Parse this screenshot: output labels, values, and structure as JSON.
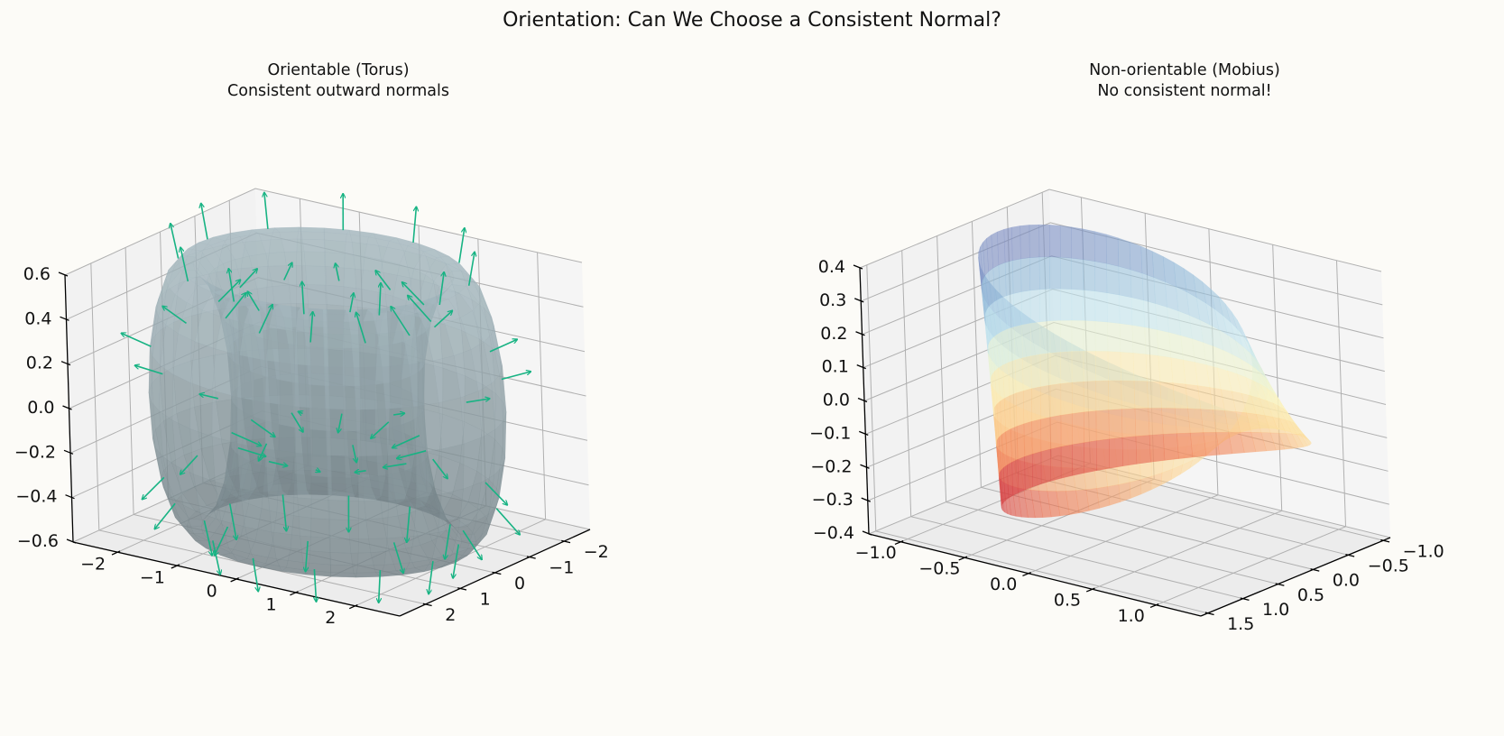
{
  "suptitle": "Orientation: Can We Choose a Consistent Normal?",
  "colors": {
    "background": "#fcfbf7",
    "pane": "#f2f2f2",
    "grid": "#b0b0b0",
    "torus": "#a3b7be",
    "normals": "#17b383",
    "mobius_cmap": [
      "#c51b3a",
      "#f0764d",
      "#fdd08a",
      "#fbf8c5",
      "#c4e6ef",
      "#8ab4d6",
      "#6f73b5"
    ]
  },
  "chart_data": [
    {
      "type": "surface3d",
      "surface": "torus",
      "title_line1": "Orientable (Torus)",
      "title_line2": "Consistent outward normals",
      "x_ticks": [
        "−2",
        "−1",
        "0",
        "1",
        "2"
      ],
      "y_ticks": [
        "−2",
        "−1",
        "0",
        "1",
        "2"
      ],
      "z_ticks": [
        "−0.6",
        "−0.4",
        "−0.2",
        "0.0",
        "0.2",
        "0.4",
        "0.6"
      ],
      "xlim": [
        -2.5,
        2.5
      ],
      "ylim": [
        -2.5,
        2.5
      ],
      "zlim": [
        -0.6,
        0.6
      ],
      "R": 2,
      "r": 0.6,
      "normals": "outward quiver arrows on the torus surface",
      "grid": true
    },
    {
      "type": "surface3d",
      "surface": "mobius",
      "title_line1": "Non-orientable (Mobius)",
      "title_line2": "No consistent normal!",
      "x_ticks": [
        "−1.0",
        "−0.5",
        "0.0",
        "0.5",
        "1.0"
      ],
      "y_ticks": [
        "−1.0",
        "−0.5",
        "0.0",
        "0.5",
        "1.0",
        "1.5"
      ],
      "z_ticks": [
        "−0.4",
        "−0.3",
        "−0.2",
        "−0.1",
        "0.0",
        "0.1",
        "0.2",
        "0.3",
        "0.4"
      ],
      "xlim": [
        -1.25,
        1.35
      ],
      "ylim": [
        -1.1,
        1.6
      ],
      "zlim": [
        -0.4,
        0.4
      ],
      "colormap": "RdYlBu",
      "grid": true
    }
  ]
}
